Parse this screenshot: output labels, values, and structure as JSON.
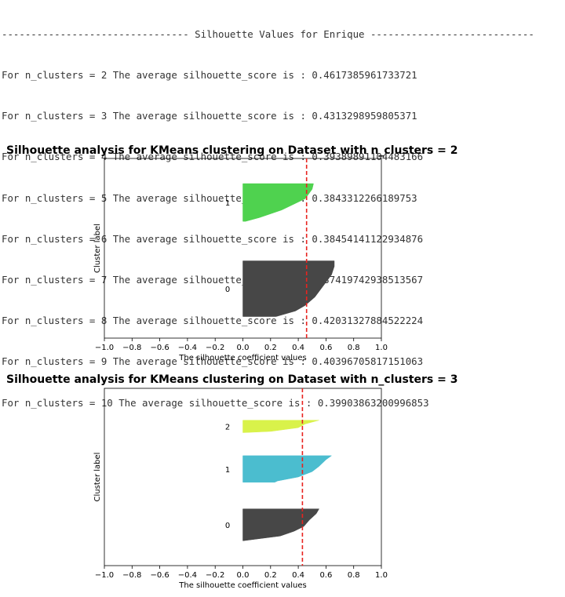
{
  "console": {
    "header": "-------------------------------- Silhouette Values for Enrique ----------------------------",
    "lines": [
      "For n_clusters = 2 The average silhouette_score is : 0.4617385961733721",
      "For n_clusters = 3 The average silhouette_score is : 0.4313298959805371",
      "For n_clusters = 4 The average silhouette_score is : 0.39389891104483166",
      "For n_clusters = 5 The average silhouette_score is : 0.3843312266189753",
      "For n_clusters = 6 The average silhouette_score is : 0.38454141122934876",
      "For n_clusters = 7 The average silhouette_score is : 0.37419742938513567",
      "For n_clusters = 8 The average silhouette_score is : 0.42031327884522224",
      "For n_clusters = 9 The average silhouette_score is : 0.40396705817151063",
      "For n_clusters = 10 The average silhouette_score is : 0.39903863200996853"
    ]
  },
  "chart_data": [
    {
      "type": "area",
      "title": "Silhouette analysis for KMeans clustering on Dataset with n_clusters = 2",
      "xlabel": "The silhouette coefficient values",
      "ylabel": "Cluster label",
      "xlim": [
        -1.0,
        1.0
      ],
      "xticks": [
        "−1.0",
        "−0.8",
        "−0.6",
        "−0.4",
        "−0.2",
        "0.0",
        "0.2",
        "0.4",
        "0.6",
        "0.8",
        "1.0"
      ],
      "average_line": 0.46,
      "clusters": [
        {
          "label": "0",
          "color": "#474747",
          "band": [
            0.57,
            0.88
          ],
          "profile": [
            [
              0.0,
              0.66
            ],
            [
              0.1,
              0.66
            ],
            [
              0.25,
              0.64
            ],
            [
              0.45,
              0.58
            ],
            [
              0.65,
              0.52
            ],
            [
              0.8,
              0.45
            ],
            [
              0.9,
              0.38
            ],
            [
              1.0,
              0.24
            ]
          ]
        },
        {
          "label": "1",
          "color": "#4fd24f",
          "band": [
            0.14,
            0.35
          ],
          "profile": [
            [
              0.0,
              0.51
            ],
            [
              0.15,
              0.5
            ],
            [
              0.4,
              0.45
            ],
            [
              0.7,
              0.28
            ],
            [
              0.9,
              0.12
            ],
            [
              1.0,
              0.02
            ]
          ]
        }
      ]
    },
    {
      "type": "area",
      "title": "Silhouette analysis for KMeans clustering on Dataset with n_clusters = 3",
      "xlabel": "The silhouette coefficient values",
      "ylabel": "Cluster label",
      "xlim": [
        -1.0,
        1.0
      ],
      "xticks": [
        "−1.0",
        "−0.8",
        "−0.6",
        "−0.4",
        "−0.2",
        "0.0",
        "0.2",
        "0.4",
        "0.6",
        "0.8",
        "1.0"
      ],
      "average_line": 0.43,
      "clusters": [
        {
          "label": "0",
          "color": "#474747",
          "band": [
            0.68,
            0.86
          ],
          "profile": [
            [
              0.0,
              0.55
            ],
            [
              0.15,
              0.53
            ],
            [
              0.35,
              0.48
            ],
            [
              0.55,
              0.44
            ],
            [
              0.7,
              0.37
            ],
            [
              0.85,
              0.27
            ],
            [
              1.0,
              0.0
            ]
          ]
        },
        {
          "label": "1",
          "color": "#4bbdcf",
          "band": [
            0.38,
            0.53
          ],
          "profile": [
            [
              0.0,
              0.64
            ],
            [
              0.15,
              0.6
            ],
            [
              0.4,
              0.55
            ],
            [
              0.6,
              0.5
            ],
            [
              0.8,
              0.4
            ],
            [
              0.95,
              0.25
            ],
            [
              1.0,
              0.23
            ]
          ]
        },
        {
          "label": "2",
          "color": "#d9f24a",
          "band": [
            0.18,
            0.25
          ],
          "profile": [
            [
              0.0,
              0.55
            ],
            [
              0.3,
              0.45
            ],
            [
              0.6,
              0.4
            ],
            [
              0.9,
              0.2
            ],
            [
              1.0,
              0.0
            ]
          ]
        }
      ]
    }
  ]
}
